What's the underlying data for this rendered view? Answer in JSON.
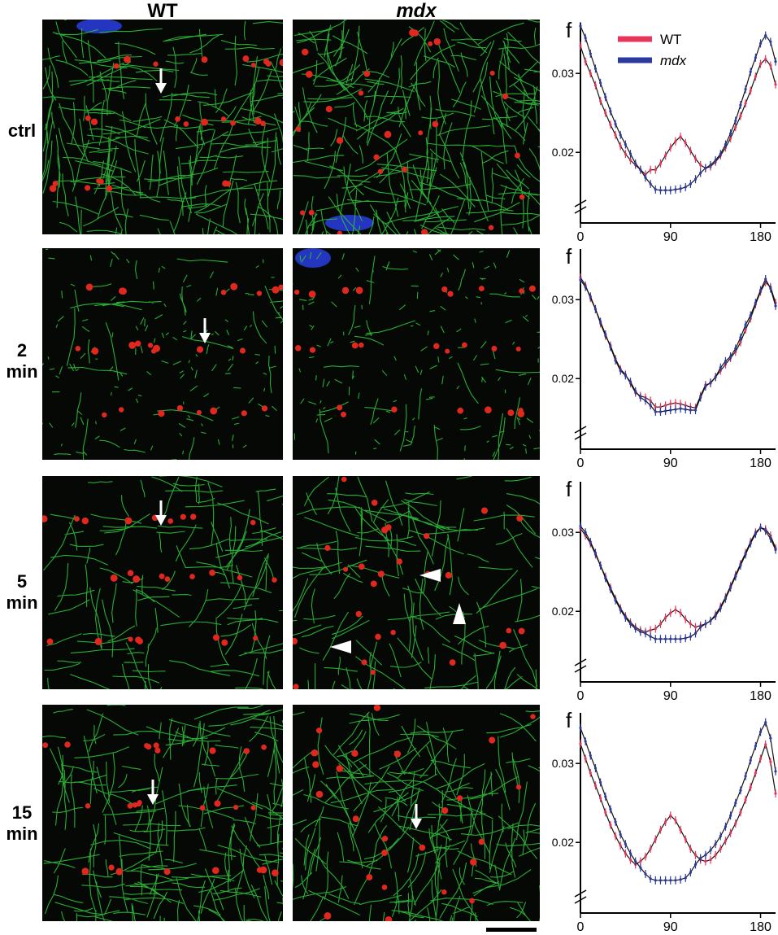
{
  "columns": {
    "wt": "WT",
    "mdx": "mdx"
  },
  "rows": [
    {
      "id": "ctrl",
      "label": "ctrl"
    },
    {
      "id": "2min",
      "label": "2\nmin"
    },
    {
      "id": "5min",
      "label": "5\nmin"
    },
    {
      "id": "15min",
      "label": "15\nmin"
    }
  ],
  "colors": {
    "wt": "#e8365a",
    "mdx": "#2b3a9e",
    "microtubule": "#2fbf3a",
    "tubulin_dot": "#e0281e",
    "nucleus": "#2a3ee0"
  },
  "legend": {
    "wt": "WT",
    "mdx": "mdx"
  },
  "chart_data": [
    {
      "type": "line",
      "panel_label": "f",
      "x_ticks": [
        "0",
        "90",
        "180"
      ],
      "y_ticks": [
        "0.02",
        "0.03"
      ],
      "xlim": [
        0,
        195
      ],
      "ylim": [
        0.0125,
        0.036
      ],
      "x": [
        0,
        5,
        10,
        15,
        20,
        25,
        30,
        35,
        40,
        45,
        50,
        55,
        60,
        65,
        70,
        75,
        80,
        85,
        90,
        95,
        100,
        105,
        110,
        115,
        120,
        125,
        130,
        135,
        140,
        145,
        150,
        155,
        160,
        165,
        170,
        175,
        180,
        185,
        190,
        195
      ],
      "series": [
        {
          "name": "WT",
          "values": [
            0.0335,
            0.0315,
            0.03,
            0.0285,
            0.0265,
            0.025,
            0.0235,
            0.0222,
            0.0208,
            0.0198,
            0.019,
            0.0184,
            0.0178,
            0.0172,
            0.0178,
            0.0178,
            0.0186,
            0.0196,
            0.0206,
            0.0214,
            0.022,
            0.0212,
            0.0202,
            0.0192,
            0.0184,
            0.018,
            0.0182,
            0.0188,
            0.0196,
            0.0206,
            0.0218,
            0.0232,
            0.0246,
            0.0262,
            0.0278,
            0.0296,
            0.0312,
            0.0318,
            0.031,
            0.0286
          ]
        },
        {
          "name": "mdx",
          "values": [
            0.036,
            0.0345,
            0.0325,
            0.0306,
            0.0288,
            0.027,
            0.0252,
            0.0236,
            0.0222,
            0.021,
            0.0198,
            0.0186,
            0.0178,
            0.0168,
            0.016,
            0.0153,
            0.0152,
            0.0152,
            0.0152,
            0.0153,
            0.0154,
            0.0156,
            0.016,
            0.0166,
            0.0174,
            0.018,
            0.0184,
            0.019,
            0.0198,
            0.021,
            0.0224,
            0.024,
            0.026,
            0.028,
            0.0302,
            0.032,
            0.0338,
            0.0348,
            0.034,
            0.0315
          ]
        }
      ]
    },
    {
      "type": "line",
      "panel_label": "f",
      "x_ticks": [
        "0",
        "90",
        "180"
      ],
      "y_ticks": [
        "0.02",
        "0.03"
      ],
      "xlim": [
        0,
        195
      ],
      "ylim": [
        0.0125,
        0.036
      ],
      "x": [
        0,
        5,
        10,
        15,
        20,
        25,
        30,
        35,
        40,
        45,
        50,
        55,
        60,
        65,
        70,
        75,
        80,
        85,
        90,
        95,
        100,
        105,
        110,
        115,
        120,
        125,
        130,
        135,
        140,
        145,
        150,
        155,
        160,
        165,
        170,
        175,
        180,
        185,
        190,
        195
      ],
      "series": [
        {
          "name": "WT",
          "values": [
            0.0328,
            0.0318,
            0.0302,
            0.0288,
            0.027,
            0.0254,
            0.0242,
            0.0225,
            0.0212,
            0.0205,
            0.0194,
            0.0182,
            0.0178,
            0.0176,
            0.0172,
            0.0164,
            0.0164,
            0.0166,
            0.0168,
            0.0169,
            0.0168,
            0.0166,
            0.0164,
            0.0163,
            0.0178,
            0.0192,
            0.0194,
            0.0202,
            0.021,
            0.0218,
            0.0226,
            0.0234,
            0.0246,
            0.0262,
            0.0276,
            0.0294,
            0.031,
            0.0322,
            0.0316,
            0.0296
          ]
        },
        {
          "name": "mdx",
          "values": [
            0.0325,
            0.0316,
            0.0304,
            0.0288,
            0.0272,
            0.0256,
            0.024,
            0.0223,
            0.021,
            0.0204,
            0.0196,
            0.0184,
            0.0176,
            0.0172,
            0.0166,
            0.0158,
            0.0158,
            0.0159,
            0.016,
            0.0161,
            0.0162,
            0.0161,
            0.016,
            0.016,
            0.0176,
            0.019,
            0.0195,
            0.0202,
            0.0214,
            0.0222,
            0.0228,
            0.0238,
            0.0252,
            0.0268,
            0.028,
            0.0296,
            0.0312,
            0.0326,
            0.0314,
            0.0292
          ]
        }
      ]
    },
    {
      "type": "line",
      "panel_label": "f",
      "x_ticks": [
        "0",
        "90",
        "180"
      ],
      "y_ticks": [
        "0.02",
        "0.03"
      ],
      "xlim": [
        0,
        195
      ],
      "ylim": [
        0.0125,
        0.036
      ],
      "x": [
        0,
        5,
        10,
        15,
        20,
        25,
        30,
        35,
        40,
        45,
        50,
        55,
        60,
        65,
        70,
        75,
        80,
        85,
        90,
        95,
        100,
        105,
        110,
        115,
        120,
        125,
        130,
        135,
        140,
        145,
        150,
        155,
        160,
        165,
        170,
        175,
        180,
        185,
        190,
        195
      ],
      "series": [
        {
          "name": "WT",
          "values": [
            0.0305,
            0.0296,
            0.0286,
            0.0272,
            0.0258,
            0.0244,
            0.023,
            0.0216,
            0.0204,
            0.0194,
            0.0186,
            0.018,
            0.0176,
            0.0174,
            0.0176,
            0.0178,
            0.0184,
            0.0192,
            0.0198,
            0.0202,
            0.0198,
            0.019,
            0.0184,
            0.018,
            0.0182,
            0.0184,
            0.0188,
            0.0196,
            0.0206,
            0.0218,
            0.0232,
            0.0246,
            0.026,
            0.0274,
            0.0288,
            0.03,
            0.0306,
            0.0304,
            0.0296,
            0.028
          ]
        },
        {
          "name": "mdx",
          "values": [
            0.0308,
            0.03,
            0.0288,
            0.0274,
            0.0258,
            0.0242,
            0.0228,
            0.0214,
            0.0202,
            0.0192,
            0.0184,
            0.0178,
            0.0174,
            0.0172,
            0.0168,
            0.0165,
            0.0165,
            0.0165,
            0.0165,
            0.0165,
            0.0165,
            0.0166,
            0.0168,
            0.0172,
            0.018,
            0.0184,
            0.0188,
            0.0194,
            0.0204,
            0.0216,
            0.023,
            0.0244,
            0.0258,
            0.0272,
            0.0286,
            0.0298,
            0.0306,
            0.0302,
            0.0292,
            0.0278
          ]
        }
      ]
    },
    {
      "type": "line",
      "panel_label": "f",
      "x_ticks": [
        "0",
        "90",
        "180"
      ],
      "y_ticks": [
        "0.02",
        "0.03"
      ],
      "xlim": [
        0,
        195
      ],
      "ylim": [
        0.0125,
        0.036
      ],
      "x": [
        0,
        5,
        10,
        15,
        20,
        25,
        30,
        35,
        40,
        45,
        50,
        55,
        60,
        65,
        70,
        75,
        80,
        85,
        90,
        95,
        100,
        105,
        110,
        115,
        120,
        125,
        130,
        135,
        140,
        145,
        150,
        155,
        160,
        165,
        170,
        175,
        180,
        185,
        190,
        195
      ],
      "series": [
        {
          "name": "WT",
          "values": [
            0.0325,
            0.0306,
            0.0288,
            0.0272,
            0.0256,
            0.0238,
            0.0222,
            0.0208,
            0.0196,
            0.0186,
            0.0178,
            0.0172,
            0.0176,
            0.0182,
            0.0192,
            0.0204,
            0.0216,
            0.0226,
            0.0234,
            0.0228,
            0.0216,
            0.0204,
            0.0192,
            0.0184,
            0.0178,
            0.0176,
            0.0178,
            0.0184,
            0.0192,
            0.0202,
            0.0212,
            0.0224,
            0.0238,
            0.0254,
            0.027,
            0.0288,
            0.0306,
            0.0324,
            0.0302,
            0.0262
          ]
        },
        {
          "name": "mdx",
          "values": [
            0.0345,
            0.0328,
            0.031,
            0.0294,
            0.0276,
            0.0258,
            0.0242,
            0.0226,
            0.021,
            0.0198,
            0.0186,
            0.0176,
            0.0168,
            0.016,
            0.0154,
            0.0152,
            0.0152,
            0.0152,
            0.0152,
            0.0152,
            0.0153,
            0.0155,
            0.0162,
            0.0172,
            0.018,
            0.0184,
            0.019,
            0.0198,
            0.0208,
            0.022,
            0.0234,
            0.025,
            0.0266,
            0.0284,
            0.0304,
            0.0322,
            0.034,
            0.0352,
            0.0332,
            0.029
          ]
        }
      ]
    }
  ]
}
